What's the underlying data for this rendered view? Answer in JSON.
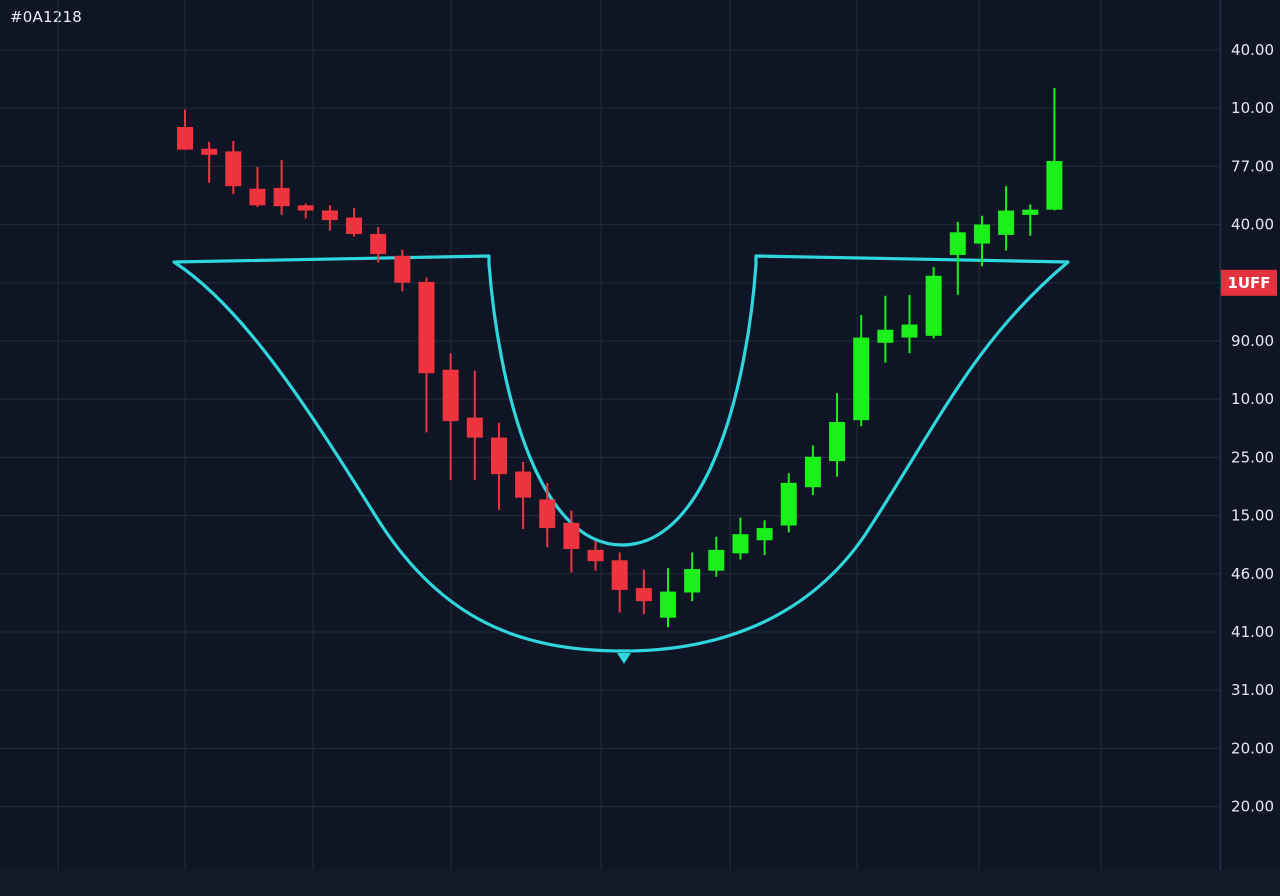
{
  "header": {
    "label": "#0A1218"
  },
  "colors": {
    "background": "#0f1524",
    "grid": "#232c3d",
    "up": "#1bf01b",
    "down": "#f0343f",
    "pattern": "#2fd6de",
    "tag": "#e5323f"
  },
  "chart_data": {
    "type": "candlestick",
    "title": "",
    "pattern": "cup and handle",
    "y_ticks": [
      "40.00",
      "10.00",
      "77.00",
      "40.00",
      "1UFF",
      "90.00",
      "10.00",
      "25.00",
      "15.00",
      "46.00",
      "41.00",
      "31.00",
      "20.00",
      "20.00"
    ],
    "price_tag": "1UFF",
    "grid": true,
    "note": "Candle values are in the chart's price scale: 0 = bottom of plot, 100 = top of plot (tick labels are not monotonic, so prices are expressed on this normalized scale).",
    "candles": [
      {
        "o": 85.4,
        "h": 87.4,
        "l": 82.8,
        "c": 82.8
      },
      {
        "o": 82.9,
        "h": 83.7,
        "l": 79.0,
        "c": 82.2
      },
      {
        "o": 82.6,
        "h": 83.8,
        "l": 77.7,
        "c": 78.6
      },
      {
        "o": 78.3,
        "h": 80.8,
        "l": 76.2,
        "c": 76.4
      },
      {
        "o": 78.4,
        "h": 81.6,
        "l": 75.3,
        "c": 76.3
      },
      {
        "o": 76.4,
        "h": 76.6,
        "l": 74.9,
        "c": 75.8
      },
      {
        "o": 75.8,
        "h": 76.4,
        "l": 73.5,
        "c": 74.7
      },
      {
        "o": 75.0,
        "h": 76.1,
        "l": 72.8,
        "c": 73.1
      },
      {
        "o": 73.1,
        "h": 73.9,
        "l": 69.8,
        "c": 70.8
      },
      {
        "o": 70.6,
        "h": 71.3,
        "l": 66.5,
        "c": 67.5
      },
      {
        "o": 67.6,
        "h": 68.1,
        "l": 50.3,
        "c": 57.1
      },
      {
        "o": 57.5,
        "h": 59.4,
        "l": 44.8,
        "c": 51.6
      },
      {
        "o": 52.0,
        "h": 57.4,
        "l": 44.8,
        "c": 49.7
      },
      {
        "o": 49.7,
        "h": 51.4,
        "l": 41.4,
        "c": 45.5
      },
      {
        "o": 45.8,
        "h": 46.9,
        "l": 39.2,
        "c": 42.8
      },
      {
        "o": 42.6,
        "h": 44.5,
        "l": 37.1,
        "c": 39.3
      },
      {
        "o": 39.9,
        "h": 41.3,
        "l": 34.2,
        "c": 36.9
      },
      {
        "o": 36.8,
        "h": 37.8,
        "l": 34.4,
        "c": 35.5
      },
      {
        "o": 35.6,
        "h": 36.5,
        "l": 29.6,
        "c": 32.2
      },
      {
        "o": 32.4,
        "h": 34.5,
        "l": 29.4,
        "c": 30.9
      },
      {
        "o": 29.0,
        "h": 34.7,
        "l": 27.9,
        "c": 32.0
      },
      {
        "o": 31.9,
        "h": 36.5,
        "l": 30.9,
        "c": 34.6
      },
      {
        "o": 34.4,
        "h": 38.3,
        "l": 33.7,
        "c": 36.8
      },
      {
        "o": 36.4,
        "h": 40.5,
        "l": 35.7,
        "c": 38.6
      },
      {
        "o": 37.9,
        "h": 40.2,
        "l": 36.2,
        "c": 39.3
      },
      {
        "o": 39.6,
        "h": 45.6,
        "l": 38.8,
        "c": 44.5
      },
      {
        "o": 44.0,
        "h": 48.8,
        "l": 43.1,
        "c": 47.5
      },
      {
        "o": 47.0,
        "h": 54.8,
        "l": 45.2,
        "c": 51.5
      },
      {
        "o": 51.7,
        "h": 63.8,
        "l": 51.0,
        "c": 61.2
      },
      {
        "o": 60.6,
        "h": 66.0,
        "l": 58.3,
        "c": 62.1
      },
      {
        "o": 61.2,
        "h": 66.1,
        "l": 59.4,
        "c": 62.7
      },
      {
        "o": 61.4,
        "h": 69.3,
        "l": 61.1,
        "c": 68.3
      },
      {
        "o": 70.7,
        "h": 74.5,
        "l": 66.1,
        "c": 73.3
      },
      {
        "o": 72.0,
        "h": 75.2,
        "l": 69.4,
        "c": 74.2
      },
      {
        "o": 73.0,
        "h": 78.6,
        "l": 71.2,
        "c": 75.8
      },
      {
        "o": 75.3,
        "h": 76.5,
        "l": 72.9,
        "c": 75.9
      },
      {
        "o": 75.9,
        "h": 89.9,
        "l": 75.8,
        "c": 81.5
      }
    ]
  }
}
